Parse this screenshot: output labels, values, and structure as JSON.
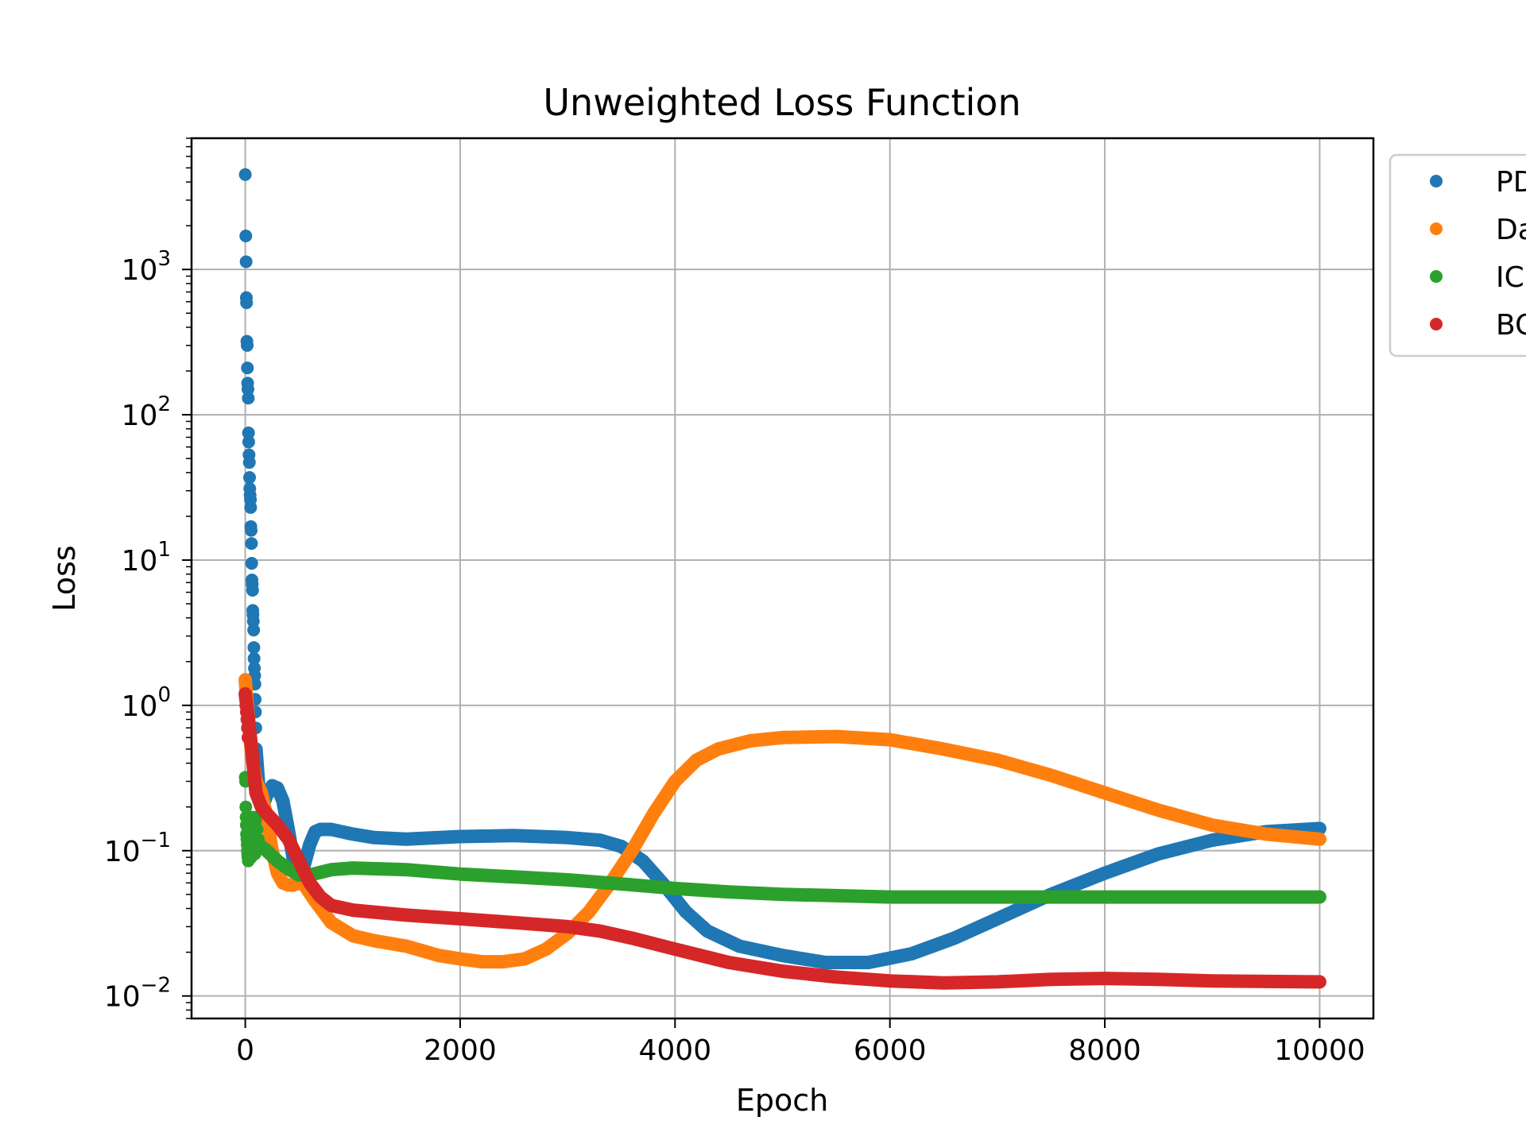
{
  "chart_data": {
    "type": "scatter",
    "title": "Unweighted Loss Function",
    "xlabel": "Epoch",
    "ylabel": "Loss",
    "xlim": [
      -500,
      10500
    ],
    "ylim": [
      0.007,
      8000
    ],
    "yscale": "log",
    "grid": true,
    "legend_position": "outside-top-right (clipped)",
    "x_ticks": [
      {
        "value": 0,
        "label": "0"
      },
      {
        "value": 2000,
        "label": "2000"
      },
      {
        "value": 4000,
        "label": "4000"
      },
      {
        "value": 6000,
        "label": "6000"
      },
      {
        "value": 8000,
        "label": "8000"
      },
      {
        "value": 10000,
        "label": "10000"
      }
    ],
    "y_ticks": [
      {
        "value": 0.01,
        "base": "10",
        "exp": "−2"
      },
      {
        "value": 0.1,
        "base": "10",
        "exp": "−1"
      },
      {
        "value": 1,
        "base": "10",
        "exp": "0"
      },
      {
        "value": 10,
        "base": "10",
        "exp": "1"
      },
      {
        "value": 100,
        "base": "10",
        "exp": "2"
      },
      {
        "value": 1000,
        "base": "10",
        "exp": "3"
      }
    ],
    "series": [
      {
        "name": "PD",
        "color": "#1f77b4",
        "scatter_points": [
          [
            0,
            4500
          ],
          [
            5,
            1700
          ],
          [
            8,
            1130
          ],
          [
            10,
            640
          ],
          [
            12,
            590
          ],
          [
            15,
            320
          ],
          [
            18,
            300
          ],
          [
            20,
            210
          ],
          [
            22,
            165
          ],
          [
            25,
            150
          ],
          [
            28,
            130
          ],
          [
            30,
            75
          ],
          [
            32,
            65
          ],
          [
            35,
            53
          ],
          [
            38,
            47
          ],
          [
            40,
            37
          ],
          [
            42,
            31
          ],
          [
            45,
            28
          ],
          [
            48,
            26
          ],
          [
            50,
            23
          ],
          [
            52,
            17
          ],
          [
            55,
            16
          ],
          [
            58,
            13
          ],
          [
            60,
            9.5
          ],
          [
            62,
            7.3
          ],
          [
            65,
            6.8
          ],
          [
            68,
            6.2
          ],
          [
            70,
            4.5
          ],
          [
            72,
            4.2
          ],
          [
            75,
            3.8
          ],
          [
            78,
            3.3
          ],
          [
            80,
            2.5
          ],
          [
            82,
            2.1
          ],
          [
            85,
            1.8
          ],
          [
            88,
            1.6
          ],
          [
            90,
            1.4
          ],
          [
            92,
            1.1
          ],
          [
            95,
            0.9
          ],
          [
            98,
            0.7
          ],
          [
            100,
            0.5
          ]
        ],
        "points": [
          [
            100,
            0.5
          ],
          [
            130,
            0.25
          ],
          [
            160,
            0.2
          ],
          [
            200,
            0.24
          ],
          [
            250,
            0.28
          ],
          [
            300,
            0.27
          ],
          [
            350,
            0.22
          ],
          [
            400,
            0.14
          ],
          [
            450,
            0.085
          ],
          [
            500,
            0.075
          ],
          [
            550,
            0.08
          ],
          [
            600,
            0.11
          ],
          [
            650,
            0.135
          ],
          [
            700,
            0.14
          ],
          [
            800,
            0.14
          ],
          [
            1000,
            0.13
          ],
          [
            1200,
            0.123
          ],
          [
            1500,
            0.12
          ],
          [
            2000,
            0.125
          ],
          [
            2500,
            0.127
          ],
          [
            3000,
            0.123
          ],
          [
            3300,
            0.118
          ],
          [
            3500,
            0.107
          ],
          [
            3700,
            0.085
          ],
          [
            3900,
            0.058
          ],
          [
            4100,
            0.038
          ],
          [
            4300,
            0.028
          ],
          [
            4600,
            0.022
          ],
          [
            5000,
            0.019
          ],
          [
            5400,
            0.017
          ],
          [
            5800,
            0.017
          ],
          [
            6200,
            0.0195
          ],
          [
            6600,
            0.025
          ],
          [
            7000,
            0.034
          ],
          [
            7500,
            0.05
          ],
          [
            8000,
            0.07
          ],
          [
            8500,
            0.095
          ],
          [
            9000,
            0.118
          ],
          [
            9500,
            0.135
          ],
          [
            10000,
            0.142
          ]
        ]
      },
      {
        "name": "Da",
        "color": "#ff7f0e",
        "scatter_points": [
          [
            0,
            1.5
          ],
          [
            5,
            1.3
          ],
          [
            10,
            1.1
          ],
          [
            15,
            0.9
          ],
          [
            20,
            0.8
          ],
          [
            25,
            0.7
          ]
        ],
        "points": [
          [
            0,
            1.5
          ],
          [
            30,
            0.8
          ],
          [
            60,
            0.45
          ],
          [
            100,
            0.3
          ],
          [
            150,
            0.25
          ],
          [
            200,
            0.17
          ],
          [
            250,
            0.1
          ],
          [
            300,
            0.07
          ],
          [
            350,
            0.06
          ],
          [
            400,
            0.058
          ],
          [
            450,
            0.058
          ],
          [
            500,
            0.06
          ],
          [
            550,
            0.058
          ],
          [
            650,
            0.045
          ],
          [
            800,
            0.032
          ],
          [
            1000,
            0.026
          ],
          [
            1200,
            0.024
          ],
          [
            1500,
            0.022
          ],
          [
            1800,
            0.019
          ],
          [
            2000,
            0.018
          ],
          [
            2200,
            0.0172
          ],
          [
            2400,
            0.0172
          ],
          [
            2600,
            0.018
          ],
          [
            2800,
            0.021
          ],
          [
            3000,
            0.027
          ],
          [
            3200,
            0.038
          ],
          [
            3400,
            0.06
          ],
          [
            3600,
            0.1
          ],
          [
            3800,
            0.18
          ],
          [
            4000,
            0.3
          ],
          [
            4200,
            0.42
          ],
          [
            4400,
            0.5
          ],
          [
            4700,
            0.57
          ],
          [
            5000,
            0.6
          ],
          [
            5500,
            0.61
          ],
          [
            6000,
            0.58
          ],
          [
            6500,
            0.5
          ],
          [
            7000,
            0.42
          ],
          [
            7500,
            0.33
          ],
          [
            8000,
            0.25
          ],
          [
            8500,
            0.19
          ],
          [
            9000,
            0.15
          ],
          [
            9500,
            0.13
          ],
          [
            10000,
            0.12
          ]
        ]
      },
      {
        "name": "IC",
        "color": "#2ca02c",
        "scatter_points": [
          [
            0,
            0.32
          ],
          [
            3,
            0.3
          ],
          [
            5,
            0.2
          ],
          [
            8,
            0.17
          ],
          [
            10,
            0.15
          ],
          [
            12,
            0.13
          ],
          [
            15,
            0.12
          ],
          [
            18,
            0.11
          ],
          [
            20,
            0.1
          ],
          [
            22,
            0.095
          ],
          [
            25,
            0.09
          ],
          [
            28,
            0.085
          ],
          [
            30,
            0.16
          ],
          [
            35,
            0.17
          ],
          [
            40,
            0.14
          ],
          [
            45,
            0.12
          ],
          [
            50,
            0.1
          ],
          [
            55,
            0.09
          ],
          [
            60,
            0.15
          ],
          [
            65,
            0.17
          ],
          [
            70,
            0.15
          ],
          [
            75,
            0.13
          ],
          [
            80,
            0.11
          ],
          [
            85,
            0.1
          ],
          [
            90,
            0.095
          ],
          [
            95,
            0.16
          ],
          [
            100,
            0.17
          ],
          [
            110,
            0.14
          ],
          [
            120,
            0.12
          ],
          [
            130,
            0.11
          ]
        ],
        "points": [
          [
            130,
            0.11
          ],
          [
            200,
            0.1
          ],
          [
            300,
            0.085
          ],
          [
            400,
            0.075
          ],
          [
            500,
            0.068
          ],
          [
            600,
            0.068
          ],
          [
            800,
            0.074
          ],
          [
            1000,
            0.076
          ],
          [
            1500,
            0.074
          ],
          [
            2000,
            0.069
          ],
          [
            2500,
            0.066
          ],
          [
            3000,
            0.063
          ],
          [
            3500,
            0.059
          ],
          [
            4000,
            0.055
          ],
          [
            4500,
            0.052
          ],
          [
            5000,
            0.05
          ],
          [
            5500,
            0.049
          ],
          [
            6000,
            0.048
          ],
          [
            7000,
            0.048
          ],
          [
            8000,
            0.048
          ],
          [
            9000,
            0.048
          ],
          [
            10000,
            0.048
          ]
        ]
      },
      {
        "name": "BC",
        "color": "#d62728",
        "scatter_points": [
          [
            0,
            1.2
          ],
          [
            5,
            1.0
          ],
          [
            10,
            0.9
          ],
          [
            15,
            0.8
          ],
          [
            20,
            0.7
          ],
          [
            25,
            0.6
          ]
        ],
        "points": [
          [
            0,
            1.2
          ],
          [
            30,
            0.8
          ],
          [
            60,
            0.5
          ],
          [
            80,
            0.35
          ],
          [
            100,
            0.25
          ],
          [
            150,
            0.2
          ],
          [
            200,
            0.18
          ],
          [
            300,
            0.15
          ],
          [
            400,
            0.12
          ],
          [
            500,
            0.085
          ],
          [
            600,
            0.06
          ],
          [
            700,
            0.048
          ],
          [
            800,
            0.042
          ],
          [
            1000,
            0.039
          ],
          [
            1500,
            0.036
          ],
          [
            2000,
            0.034
          ],
          [
            2500,
            0.032
          ],
          [
            3000,
            0.03
          ],
          [
            3300,
            0.028
          ],
          [
            3600,
            0.025
          ],
          [
            4000,
            0.021
          ],
          [
            4500,
            0.017
          ],
          [
            5000,
            0.0148
          ],
          [
            5500,
            0.0135
          ],
          [
            6000,
            0.0127
          ],
          [
            6500,
            0.0123
          ],
          [
            7000,
            0.0125
          ],
          [
            7500,
            0.013
          ],
          [
            8000,
            0.0132
          ],
          [
            8500,
            0.013
          ],
          [
            9000,
            0.0127
          ],
          [
            10000,
            0.0125
          ]
        ]
      }
    ]
  }
}
